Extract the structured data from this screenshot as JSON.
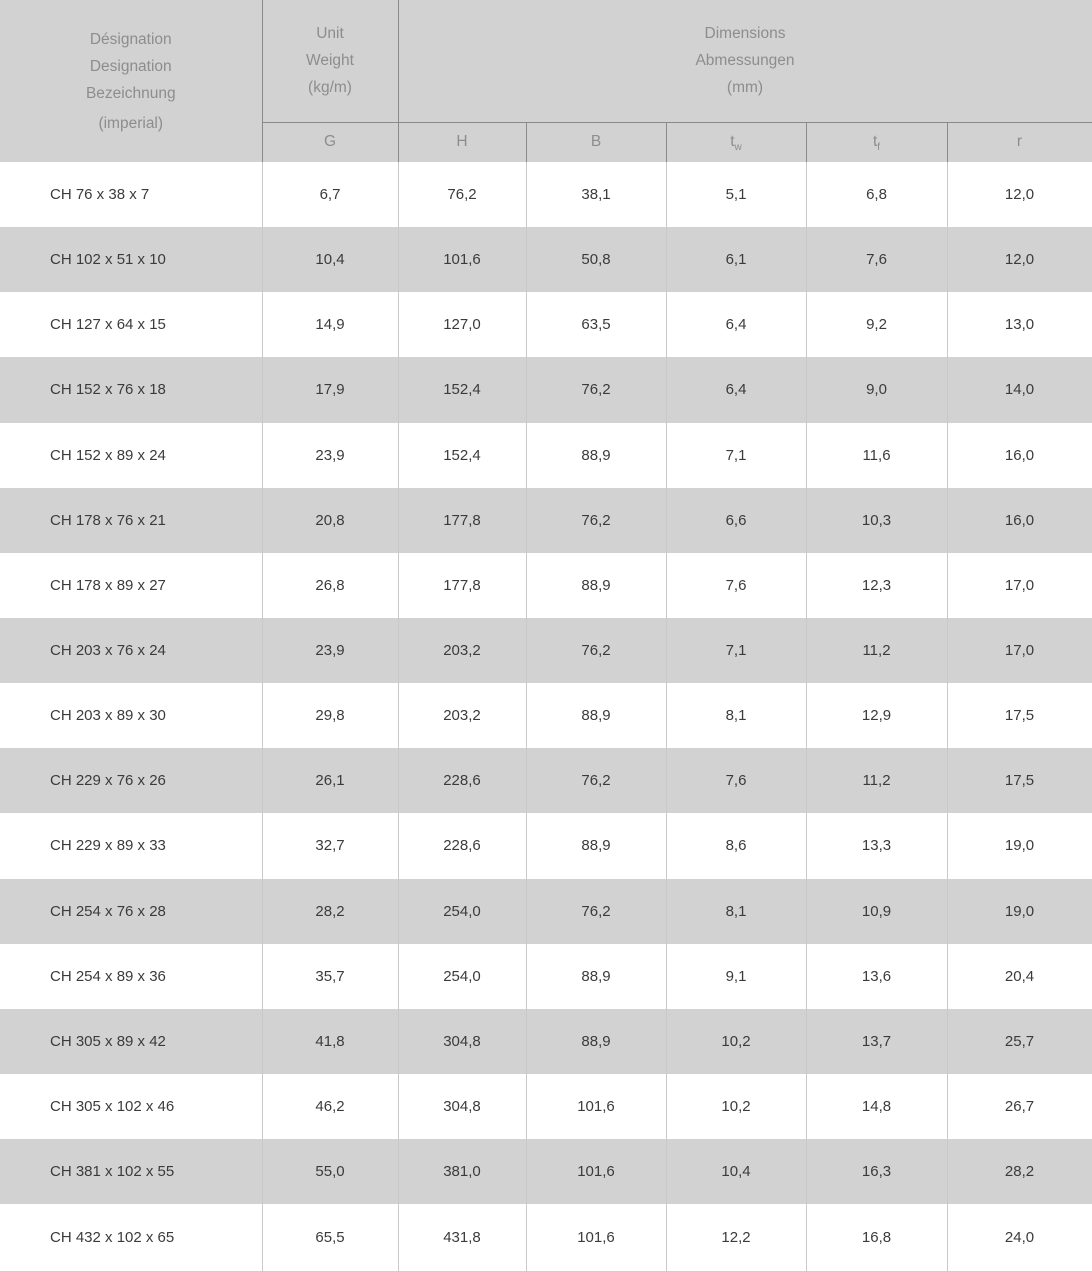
{
  "colors": {
    "row_alt_gray": "#d2d2d2",
    "header_bg": "#d2d2d2",
    "header_text": "#8d8d8d",
    "header_border": "#8a8a8a",
    "body_border": "#c9c9c9",
    "body_text": "#3b3b3b",
    "row_white": "#ffffff"
  },
  "table": {
    "header": {
      "designation_lines": [
        "Désignation",
        "Designation",
        "Bezeichnung",
        "(imperial)"
      ],
      "unit_weight_lines": [
        "Unit",
        "Weight",
        "(kg/m)"
      ],
      "dimensions_lines": [
        "Dimensions",
        "Abmessungen",
        "(mm)"
      ],
      "sub_columns": [
        {
          "label": "G"
        },
        {
          "label": "H"
        },
        {
          "label": "B"
        },
        {
          "label": "t",
          "sub": "w"
        },
        {
          "label": "t",
          "sub": "f"
        },
        {
          "label": "r"
        }
      ]
    },
    "rows": [
      {
        "designation": "CH 76 x 38 x 7",
        "values": [
          "6,7",
          "76,2",
          "38,1",
          "5,1",
          "6,8",
          "12,0"
        ]
      },
      {
        "designation": "CH 102 x 51 x 10",
        "values": [
          "10,4",
          "101,6",
          "50,8",
          "6,1",
          "7,6",
          "12,0"
        ]
      },
      {
        "designation": "CH 127 x 64 x 15",
        "values": [
          "14,9",
          "127,0",
          "63,5",
          "6,4",
          "9,2",
          "13,0"
        ]
      },
      {
        "designation": "CH 152 x 76 x 18",
        "values": [
          "17,9",
          "152,4",
          "76,2",
          "6,4",
          "9,0",
          "14,0"
        ]
      },
      {
        "designation": "CH 152 x 89 x 24",
        "values": [
          "23,9",
          "152,4",
          "88,9",
          "7,1",
          "11,6",
          "16,0"
        ]
      },
      {
        "designation": "CH 178 x 76 x 21",
        "values": [
          "20,8",
          "177,8",
          "76,2",
          "6,6",
          "10,3",
          "16,0"
        ]
      },
      {
        "designation": "CH 178 x 89 x 27",
        "values": [
          "26,8",
          "177,8",
          "88,9",
          "7,6",
          "12,3",
          "17,0"
        ]
      },
      {
        "designation": "CH 203 x 76 x 24",
        "values": [
          "23,9",
          "203,2",
          "76,2",
          "7,1",
          "11,2",
          "17,0"
        ]
      },
      {
        "designation": "CH 203 x 89 x 30",
        "values": [
          "29,8",
          "203,2",
          "88,9",
          "8,1",
          "12,9",
          "17,5"
        ]
      },
      {
        "designation": "CH 229 x 76 x 26",
        "values": [
          "26,1",
          "228,6",
          "76,2",
          "7,6",
          "11,2",
          "17,5"
        ]
      },
      {
        "designation": "CH 229 x 89 x 33",
        "values": [
          "32,7",
          "228,6",
          "88,9",
          "8,6",
          "13,3",
          "19,0"
        ]
      },
      {
        "designation": "CH 254 x 76 x 28",
        "values": [
          "28,2",
          "254,0",
          "76,2",
          "8,1",
          "10,9",
          "19,0"
        ]
      },
      {
        "designation": "CH 254 x 89 x 36",
        "values": [
          "35,7",
          "254,0",
          "88,9",
          "9,1",
          "13,6",
          "20,4"
        ]
      },
      {
        "designation": "CH 305 x 89 x 42",
        "values": [
          "41,8",
          "304,8",
          "88,9",
          "10,2",
          "13,7",
          "25,7"
        ]
      },
      {
        "designation": "CH 305 x 102 x 46",
        "values": [
          "46,2",
          "304,8",
          "101,6",
          "10,2",
          "14,8",
          "26,7"
        ]
      },
      {
        "designation": "CH 381 x 102 x 55",
        "values": [
          "55,0",
          "381,0",
          "101,6",
          "10,4",
          "16,3",
          "28,2"
        ]
      },
      {
        "designation": "CH 432 x 102 x 65",
        "values": [
          "65,5",
          "431,8",
          "101,6",
          "12,2",
          "16,8",
          "24,0"
        ]
      }
    ]
  }
}
